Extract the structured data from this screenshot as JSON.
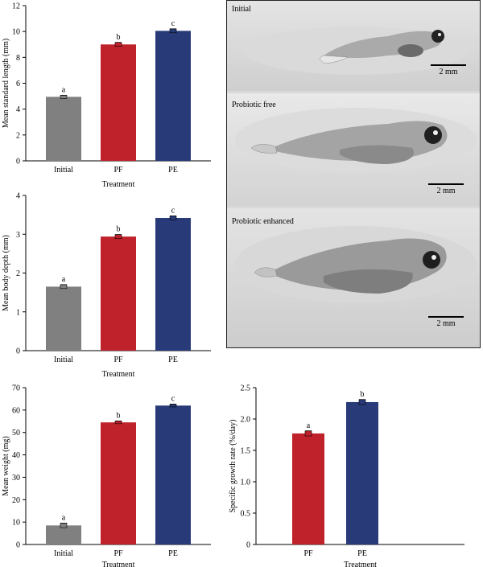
{
  "colors": {
    "initial": "#808080",
    "pf": "#c0222b",
    "pe": "#283a78"
  },
  "photo_panel": {
    "cells": [
      {
        "label": "Initial",
        "scale_label": "2 mm"
      },
      {
        "label": "Probiotic free",
        "scale_label": "2 mm"
      },
      {
        "label": "Probiotic enhanced",
        "scale_label": "2 mm"
      }
    ]
  },
  "chart_data": [
    {
      "type": "bar",
      "categories": [
        "Initial",
        "PF",
        "PE"
      ],
      "values": [
        4.95,
        9.0,
        10.05
      ],
      "errors": [
        0.12,
        0.15,
        0.15
      ],
      "significance": [
        "a",
        "b",
        "c"
      ],
      "bar_colors": [
        "initial",
        "pf",
        "pe"
      ],
      "xlabel": "Treatment",
      "ylabel": "Mean standard length (mm)",
      "ylim": [
        0,
        12
      ],
      "yticks": [
        0,
        2,
        4,
        6,
        8,
        10,
        12
      ],
      "grid": false
    },
    {
      "type": "bar",
      "categories": [
        "Initial",
        "PF",
        "PE"
      ],
      "values": [
        1.65,
        2.94,
        3.42
      ],
      "errors": [
        0.05,
        0.05,
        0.05
      ],
      "significance": [
        "a",
        "b",
        "c"
      ],
      "bar_colors": [
        "initial",
        "pf",
        "pe"
      ],
      "xlabel": "Treatment",
      "ylabel": "Mean body depth (mm)",
      "ylim": [
        0,
        4
      ],
      "yticks": [
        0,
        1,
        2,
        3,
        4
      ],
      "grid": false
    },
    {
      "type": "bar",
      "categories": [
        "Initial",
        "PF",
        "PE"
      ],
      "values": [
        8.5,
        54.5,
        62.0
      ],
      "errors": [
        1.0,
        0.6,
        0.6
      ],
      "significance": [
        "a",
        "b",
        "c"
      ],
      "bar_colors": [
        "initial",
        "pf",
        "pe"
      ],
      "xlabel": "Treatment",
      "ylabel": "Mean weight (mg)",
      "ylim": [
        0,
        70
      ],
      "yticks": [
        0,
        10,
        20,
        30,
        40,
        50,
        60,
        70
      ],
      "grid": false
    },
    {
      "type": "bar",
      "categories": [
        "PF",
        "PE"
      ],
      "values": [
        1.77,
        2.27
      ],
      "errors": [
        0.04,
        0.04
      ],
      "significance": [
        "a",
        "b"
      ],
      "bar_colors": [
        "pf",
        "pe"
      ],
      "xlabel": "Treatment",
      "ylabel": "Specific growth rate (%/day)",
      "ylim": [
        0,
        2.5
      ],
      "yticks": [
        0,
        0.5,
        1.0,
        1.5,
        2.0,
        2.5
      ],
      "ytick_labels": [
        "0",
        "0.5",
        "1.0",
        "1.5",
        "2.0",
        "2.5"
      ],
      "grid": false
    }
  ]
}
